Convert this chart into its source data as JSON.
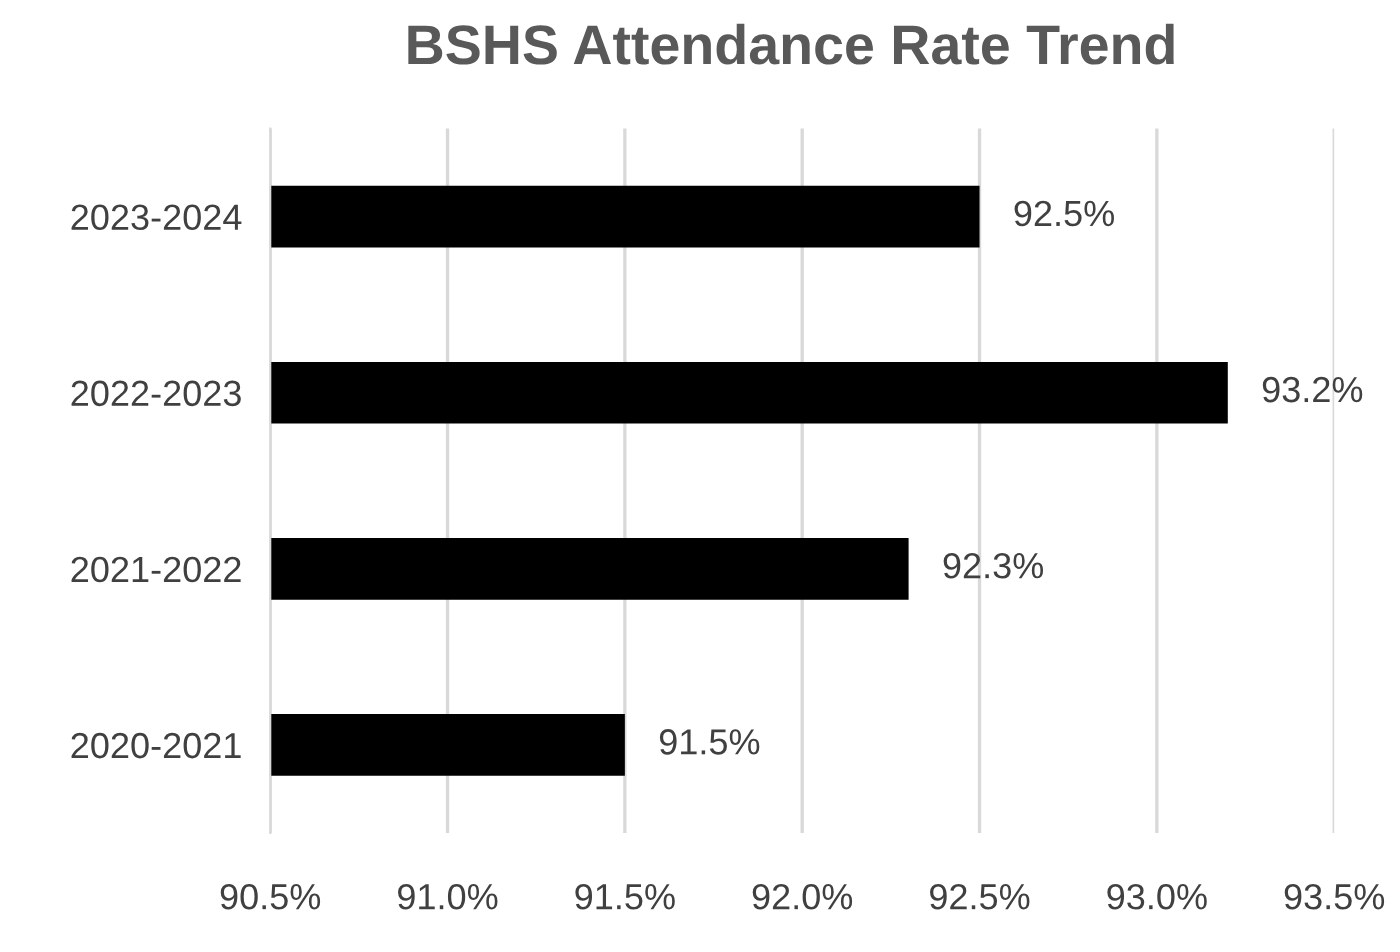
{
  "chart_data": {
    "type": "bar",
    "orientation": "horizontal",
    "title": "BSHS Attendance Rate Trend",
    "categories": [
      "2023-2024",
      "2022-2023",
      "2021-2022",
      "2020-2021"
    ],
    "values": [
      92.5,
      93.2,
      92.3,
      91.5
    ],
    "color": "#000000",
    "value_labels": [
      "92.5%",
      "93.2%",
      "92.3%",
      "91.5%"
    ],
    "xlim": [
      90.5,
      93.5
    ],
    "xticks": [
      {
        "value": 90.5,
        "label": "90.5%"
      },
      {
        "value": 91.0,
        "label": "91.0%"
      },
      {
        "value": 91.5,
        "label": "91.5%"
      },
      {
        "value": 92.0,
        "label": "92.0%"
      },
      {
        "value": 92.5,
        "label": "92.5%"
      },
      {
        "value": 93.0,
        "label": "93.0%"
      },
      {
        "value": 93.5,
        "label": "93.5%"
      }
    ],
    "grid": "x",
    "legend": false
  }
}
